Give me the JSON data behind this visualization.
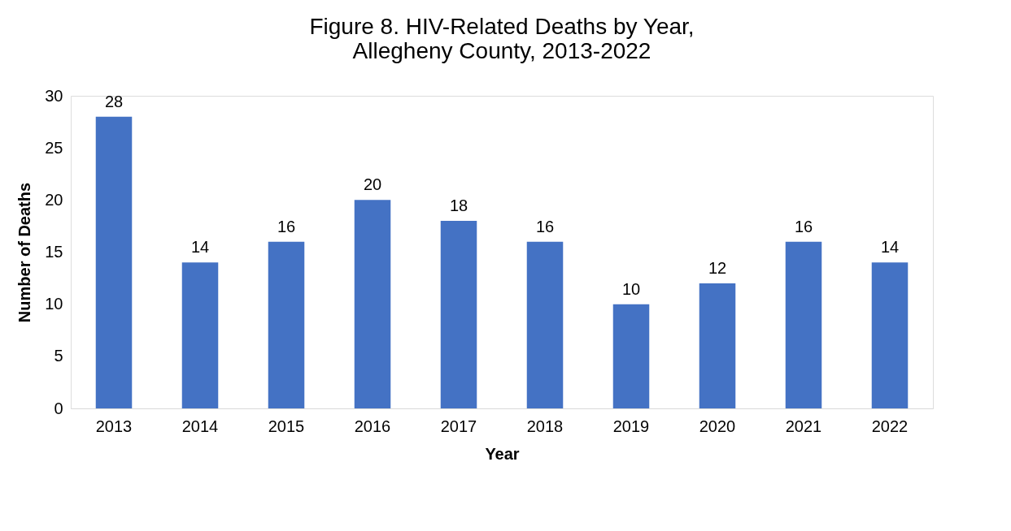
{
  "chart_data": {
    "type": "bar",
    "title": "Figure 8. HIV-Related Deaths by Year,\nAllegheny County, 2013-2022",
    "xlabel": "Year",
    "ylabel": "Number of Deaths",
    "categories": [
      "2013",
      "2014",
      "2015",
      "2016",
      "2017",
      "2018",
      "2019",
      "2020",
      "2021",
      "2022"
    ],
    "values": [
      28,
      14,
      16,
      20,
      18,
      16,
      10,
      12,
      16,
      14
    ],
    "color": "#4472c4",
    "ylim": [
      0,
      30
    ],
    "yticks": [
      0,
      5,
      10,
      15,
      20,
      25,
      30
    ],
    "grid": false,
    "data_labels": true
  }
}
